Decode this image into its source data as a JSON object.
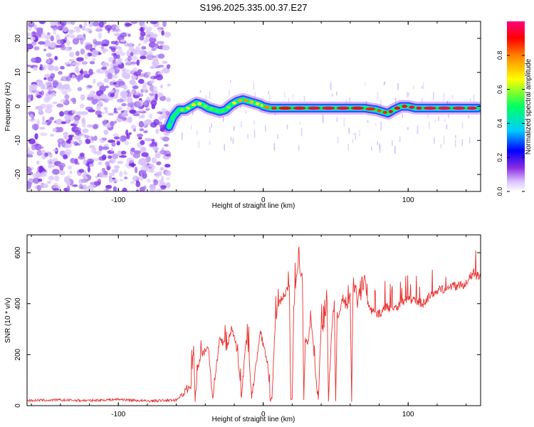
{
  "title": "S196.2025.335.00.37.E27",
  "colors": {
    "snr_line": "#e8322f",
    "axis": "#000000",
    "noise": "#7a33e8",
    "colormap": [
      "#ffffff",
      "#d8c0ff",
      "#8a2be2",
      "#0000ff",
      "#00d0ff",
      "#00ff60",
      "#ffff00",
      "#ff7f00",
      "#ff0000",
      "#ff0080"
    ]
  },
  "chart_data": [
    {
      "type": "heatmap",
      "name": "spectrogram",
      "xlabel": "Height of straight line (km)",
      "ylabel": "Frequency (Hz)",
      "xlim": [
        -163,
        150
      ],
      "ylim": [
        -25,
        25
      ],
      "x_ticks": [
        -100,
        0,
        100
      ],
      "y_ticks": [
        -20,
        -10,
        0,
        10,
        20
      ],
      "x_tick_labels": [
        "-100",
        "0",
        "100"
      ],
      "y_tick_labels": [
        "-20",
        "-10",
        "0",
        "10",
        "20"
      ],
      "noise_region_x": [
        -163,
        -65
      ],
      "ridge": {
        "description": "peak frequency track",
        "x": [
          -65,
          -62,
          -58,
          -54,
          -50,
          -46,
          -42,
          -38,
          -34,
          -30,
          -26,
          -22,
          -18,
          -14,
          -10,
          -6,
          -2,
          0,
          5,
          10,
          20,
          30,
          40,
          50,
          60,
          70,
          78,
          82,
          86,
          90,
          95,
          100,
          105,
          110,
          120,
          130,
          140,
          148
        ],
        "y": [
          -6,
          -3,
          -1,
          -1,
          0,
          1,
          0.5,
          -0.5,
          -1,
          -1.5,
          -1,
          0.5,
          1.5,
          2,
          1.5,
          1,
          0.5,
          0,
          -0.5,
          -0.5,
          -0.5,
          -0.5,
          -0.5,
          -0.5,
          -0.5,
          -0.5,
          -1,
          -1.5,
          -2,
          -1,
          0,
          0,
          -0.5,
          -0.5,
          -0.5,
          -0.5,
          -0.5,
          -0.5
        ],
        "amplitude": [
          0.3,
          0.4,
          0.55,
          0.6,
          0.65,
          0.7,
          0.6,
          0.55,
          0.55,
          0.5,
          0.55,
          0.6,
          0.7,
          0.8,
          0.75,
          0.7,
          0.6,
          0.75,
          0.85,
          0.9,
          0.9,
          0.95,
          0.95,
          0.95,
          0.95,
          0.9,
          0.85,
          0.85,
          0.9,
          0.9,
          0.9,
          0.95,
          0.95,
          0.95,
          0.97,
          0.97,
          0.97,
          0.97
        ]
      },
      "colorbar": {
        "label": "Normalized spectral amplitude",
        "range": [
          0,
          1
        ],
        "ticks": [
          0.0,
          0.2,
          0.4,
          0.6,
          0.8
        ],
        "tick_labels": [
          "0.0",
          "0.2",
          "0.4",
          "0.6",
          "0.8"
        ]
      }
    },
    {
      "type": "line",
      "name": "snr",
      "xlabel": "Height of straight line (km)",
      "ylabel": "SNR (10 * v/v)",
      "xlim": [
        -163,
        150
      ],
      "ylim": [
        0,
        670
      ],
      "x_ticks": [
        -100,
        0,
        100
      ],
      "y_ticks": [
        0,
        200,
        400,
        600
      ],
      "x_tick_labels": [
        "-100",
        "0",
        "100"
      ],
      "y_tick_labels": [
        "0",
        "200",
        "400",
        "600"
      ],
      "series": [
        {
          "name": "SNR",
          "x": [
            -163,
            -140,
            -120,
            -100,
            -80,
            -60,
            -50,
            -48,
            -47,
            -45,
            -42,
            -38,
            -35,
            -30,
            -25,
            -22,
            -20,
            -18,
            -15,
            -12,
            -10,
            -8,
            -5,
            -3,
            -2,
            0,
            3,
            5,
            6,
            8,
            10,
            14,
            18,
            19,
            20,
            21,
            23,
            25,
            27,
            28,
            29,
            31,
            33,
            35,
            38,
            40,
            42,
            44,
            45,
            47,
            49,
            50,
            51,
            53,
            55,
            57,
            60,
            61,
            62,
            64,
            65,
            66,
            68,
            70,
            72,
            75,
            80,
            85,
            90,
            95,
            100,
            105,
            110,
            115,
            120,
            125,
            130,
            135,
            140,
            145,
            150
          ],
          "y": [
            20,
            22,
            20,
            25,
            18,
            22,
            80,
            230,
            20,
            150,
            200,
            240,
            30,
            270,
            220,
            300,
            260,
            220,
            30,
            250,
            210,
            30,
            160,
            240,
            300,
            240,
            160,
            20,
            30,
            300,
            390,
            430,
            470,
            20,
            30,
            380,
            520,
            540,
            500,
            20,
            260,
            250,
            350,
            200,
            20,
            320,
            300,
            410,
            20,
            280,
            400,
            20,
            350,
            380,
            430,
            380,
            430,
            20,
            460,
            460,
            370,
            450,
            420,
            520,
            400,
            370,
            360,
            390,
            380,
            400,
            420,
            410,
            400,
            430,
            450,
            460,
            470,
            470,
            480,
            520,
            500
          ]
        }
      ]
    }
  ]
}
